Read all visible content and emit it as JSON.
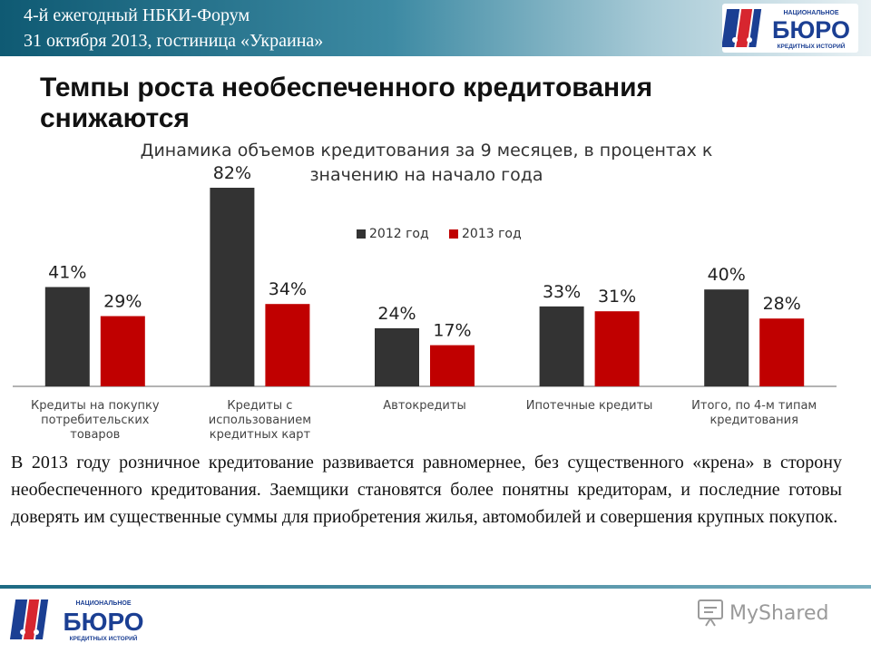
{
  "header": {
    "line1": "4-й ежегодный НБКИ-Форум",
    "line2": "31 октября 2013, гостиница «Украина»"
  },
  "logo": {
    "top_text": "НАЦИОНАЛЬНОЕ",
    "main_text": "БЮРО",
    "sub_text": "КРЕДИТНЫХ ИСТОРИЙ"
  },
  "slide": {
    "title_line1": "Темпы роста необеспеченного кредитования",
    "title_line2": "снижаются"
  },
  "chart_data": {
    "type": "bar",
    "title_line1": "Динамика объемов кредитования за 9 месяцев, в процентах к",
    "title_line2": "значению на начало года",
    "categories": [
      [
        "Кредиты на покупку",
        "потребительских",
        "товаров"
      ],
      [
        "Кредиты с",
        "использованием",
        "кредитных карт"
      ],
      [
        "Автокредиты"
      ],
      [
        "Ипотечные кредиты"
      ],
      [
        "Итого, по 4-м типам",
        "кредитования"
      ]
    ],
    "series": [
      {
        "name": "2012 год",
        "color": "#333333",
        "values": [
          41,
          82,
          24,
          33,
          40
        ],
        "labels": [
          "41%",
          "82%",
          "24%",
          "33%",
          "40%"
        ]
      },
      {
        "name": "2013 год",
        "color": "#c00000",
        "values": [
          29,
          34,
          17,
          31,
          28
        ],
        "labels": [
          "29%",
          "34%",
          "17%",
          "31%",
          "28%"
        ]
      }
    ],
    "ylim": [
      0,
      82
    ],
    "legend_position": "top-center",
    "grid": false
  },
  "text": {
    "paragraph": "В 2013 году розничное кредитование развивается равномернее, без существенного «крена» в сторону необеспеченного кредитования. Заемщики становятся более понятны кредиторам, и последние готовы доверять им существенные суммы для приобретения жилья, автомобилей и совершения крупных покупок."
  },
  "watermark": {
    "text": "MyShared"
  },
  "colors": {
    "header_blue": "#0f5a73",
    "logo_blue": "#1b3f93",
    "logo_red": "#d7262f"
  }
}
